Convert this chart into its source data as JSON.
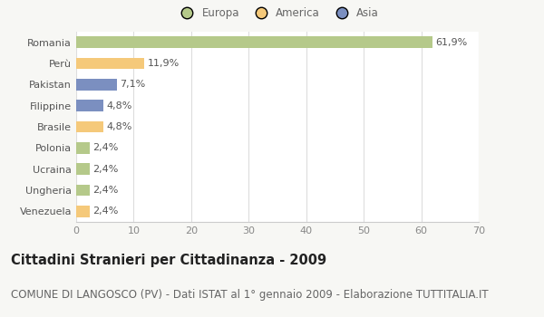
{
  "countries": [
    "Romania",
    "Perù",
    "Pakistan",
    "Filippine",
    "Brasile",
    "Polonia",
    "Ucraina",
    "Ungheria",
    "Venezuela"
  ],
  "values": [
    61.9,
    11.9,
    7.1,
    4.8,
    4.8,
    2.4,
    2.4,
    2.4,
    2.4
  ],
  "labels": [
    "61,9%",
    "11,9%",
    "7,1%",
    "4,8%",
    "4,8%",
    "2,4%",
    "2,4%",
    "2,4%",
    "2,4%"
  ],
  "colors": [
    "#b5c98a",
    "#f5c97a",
    "#7b8fc0",
    "#7b8fc0",
    "#f5c97a",
    "#b5c98a",
    "#b5c98a",
    "#b5c98a",
    "#f5c97a"
  ],
  "legend_labels": [
    "Europa",
    "America",
    "Asia"
  ],
  "legend_colors": [
    "#b5c98a",
    "#f5c97a",
    "#7b8fc0"
  ],
  "title": "Cittadini Stranieri per Cittadinanza - 2009",
  "subtitle": "COMUNE DI LANGOSCO (PV) - Dati ISTAT al 1° gennaio 2009 - Elaborazione TUTTITALIA.IT",
  "xlim": [
    0,
    70
  ],
  "xticks": [
    0,
    10,
    20,
    30,
    40,
    50,
    60,
    70
  ],
  "bg_color": "#f7f7f4",
  "plot_bg_color": "#ffffff",
  "bar_height": 0.55,
  "title_fontsize": 10.5,
  "subtitle_fontsize": 8.5,
  "label_fontsize": 8,
  "tick_fontsize": 8,
  "legend_fontsize": 8.5
}
